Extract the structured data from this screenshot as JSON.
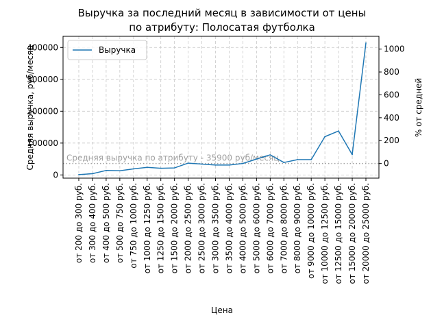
{
  "chart_data": {
    "type": "line",
    "title_line1": "Выручка за последний месяц в зависимости от цены",
    "title_line2": "по атрибуту: Полосатая футболка",
    "xlabel": "Цена",
    "ylabel": "Средняя выручка, руб/месяц",
    "y2label": "% от средней",
    "ylim": [
      -10000,
      435000
    ],
    "y_ticks": [
      0,
      100000,
      200000,
      300000,
      400000
    ],
    "y2_ticks": [
      0,
      200,
      400,
      600,
      800,
      1000
    ],
    "grid": true,
    "legend_position": "top-left",
    "categories": [
      "от 200 до 300 руб.",
      "от 300 до 400 руб.",
      "от 400 до 500 руб.",
      "от 500 до 750 руб.",
      "от 750 до 1000 руб.",
      "от 1000 до 1250 руб.",
      "от 1250 до 1500 руб.",
      "от 1500 до 2000 руб.",
      "от 2000 до 2500 руб.",
      "от 2500 до 3000 руб.",
      "от 3000 до 3500 руб.",
      "от 3500 до 4000 руб.",
      "от 4000 до 5000 руб.",
      "от 5000 до 6000 руб.",
      "от 6000 до 7000 руб.",
      "от 7000 до 8000 руб.",
      "от 8000 до 9000 руб.",
      "от 9000 до 10000 руб.",
      "от 10000 до 12500 руб.",
      "от 12500 до 15000 руб.",
      "от 15000 до 20000 руб.",
      "от 20000 до 25000 руб."
    ],
    "series": [
      {
        "name": "Выручка",
        "color": "#1f77b4",
        "values": [
          1000,
          4000,
          14000,
          13000,
          19000,
          24000,
          21000,
          22000,
          37000,
          34000,
          31000,
          31000,
          36000,
          50000,
          63000,
          39000,
          48000,
          48000,
          120000,
          138000,
          64000,
          414000
        ]
      }
    ],
    "average_line": {
      "value": 35900,
      "label": "Средняя выручка по атрибуту - 35900 руб/месяц",
      "color": "#a0a0a0"
    }
  }
}
